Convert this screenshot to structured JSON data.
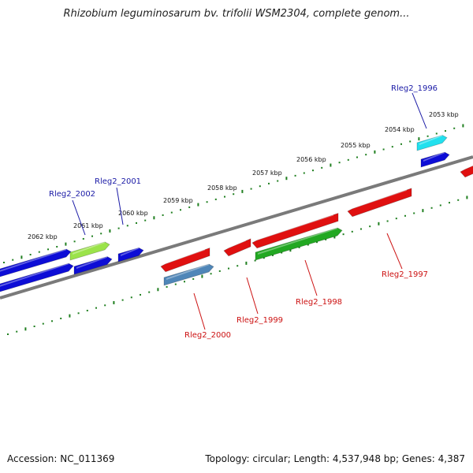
{
  "title": "Rhizobium leguminosarum bv. trifolii WSM2304, complete genom...",
  "footer": {
    "accession": "Accession: NC_011369",
    "summary": "Topology: circular; Length: 4,537,948 bp; Genes: 4,387"
  },
  "scale_labels": [
    "2053 kbp",
    "2054 kbp",
    "2055 kbp",
    "2056 kbp",
    "2057 kbp",
    "2058 kbp",
    "2059 kbp",
    "2060 kbp",
    "2061 kbp",
    "2062 kbp"
  ],
  "gene_labels": [
    "Rleg2_1996",
    "Rleg2_1997",
    "Rleg2_1998",
    "Rleg2_1999",
    "Rleg2_2000",
    "Rleg2_2001",
    "Rleg2_2002"
  ],
  "colors": {
    "backbone": "#7a7a7a",
    "ticks": "#1f7f1f",
    "label_forward": "#1a1aa6",
    "label_reverse": "#cc1111",
    "blue": "#0d0dd6",
    "red": "#e01010",
    "green": "#22a822",
    "lightgreen": "#9be34a",
    "cyan": "#22e0ee",
    "steelblue": "#4f86b8"
  }
}
